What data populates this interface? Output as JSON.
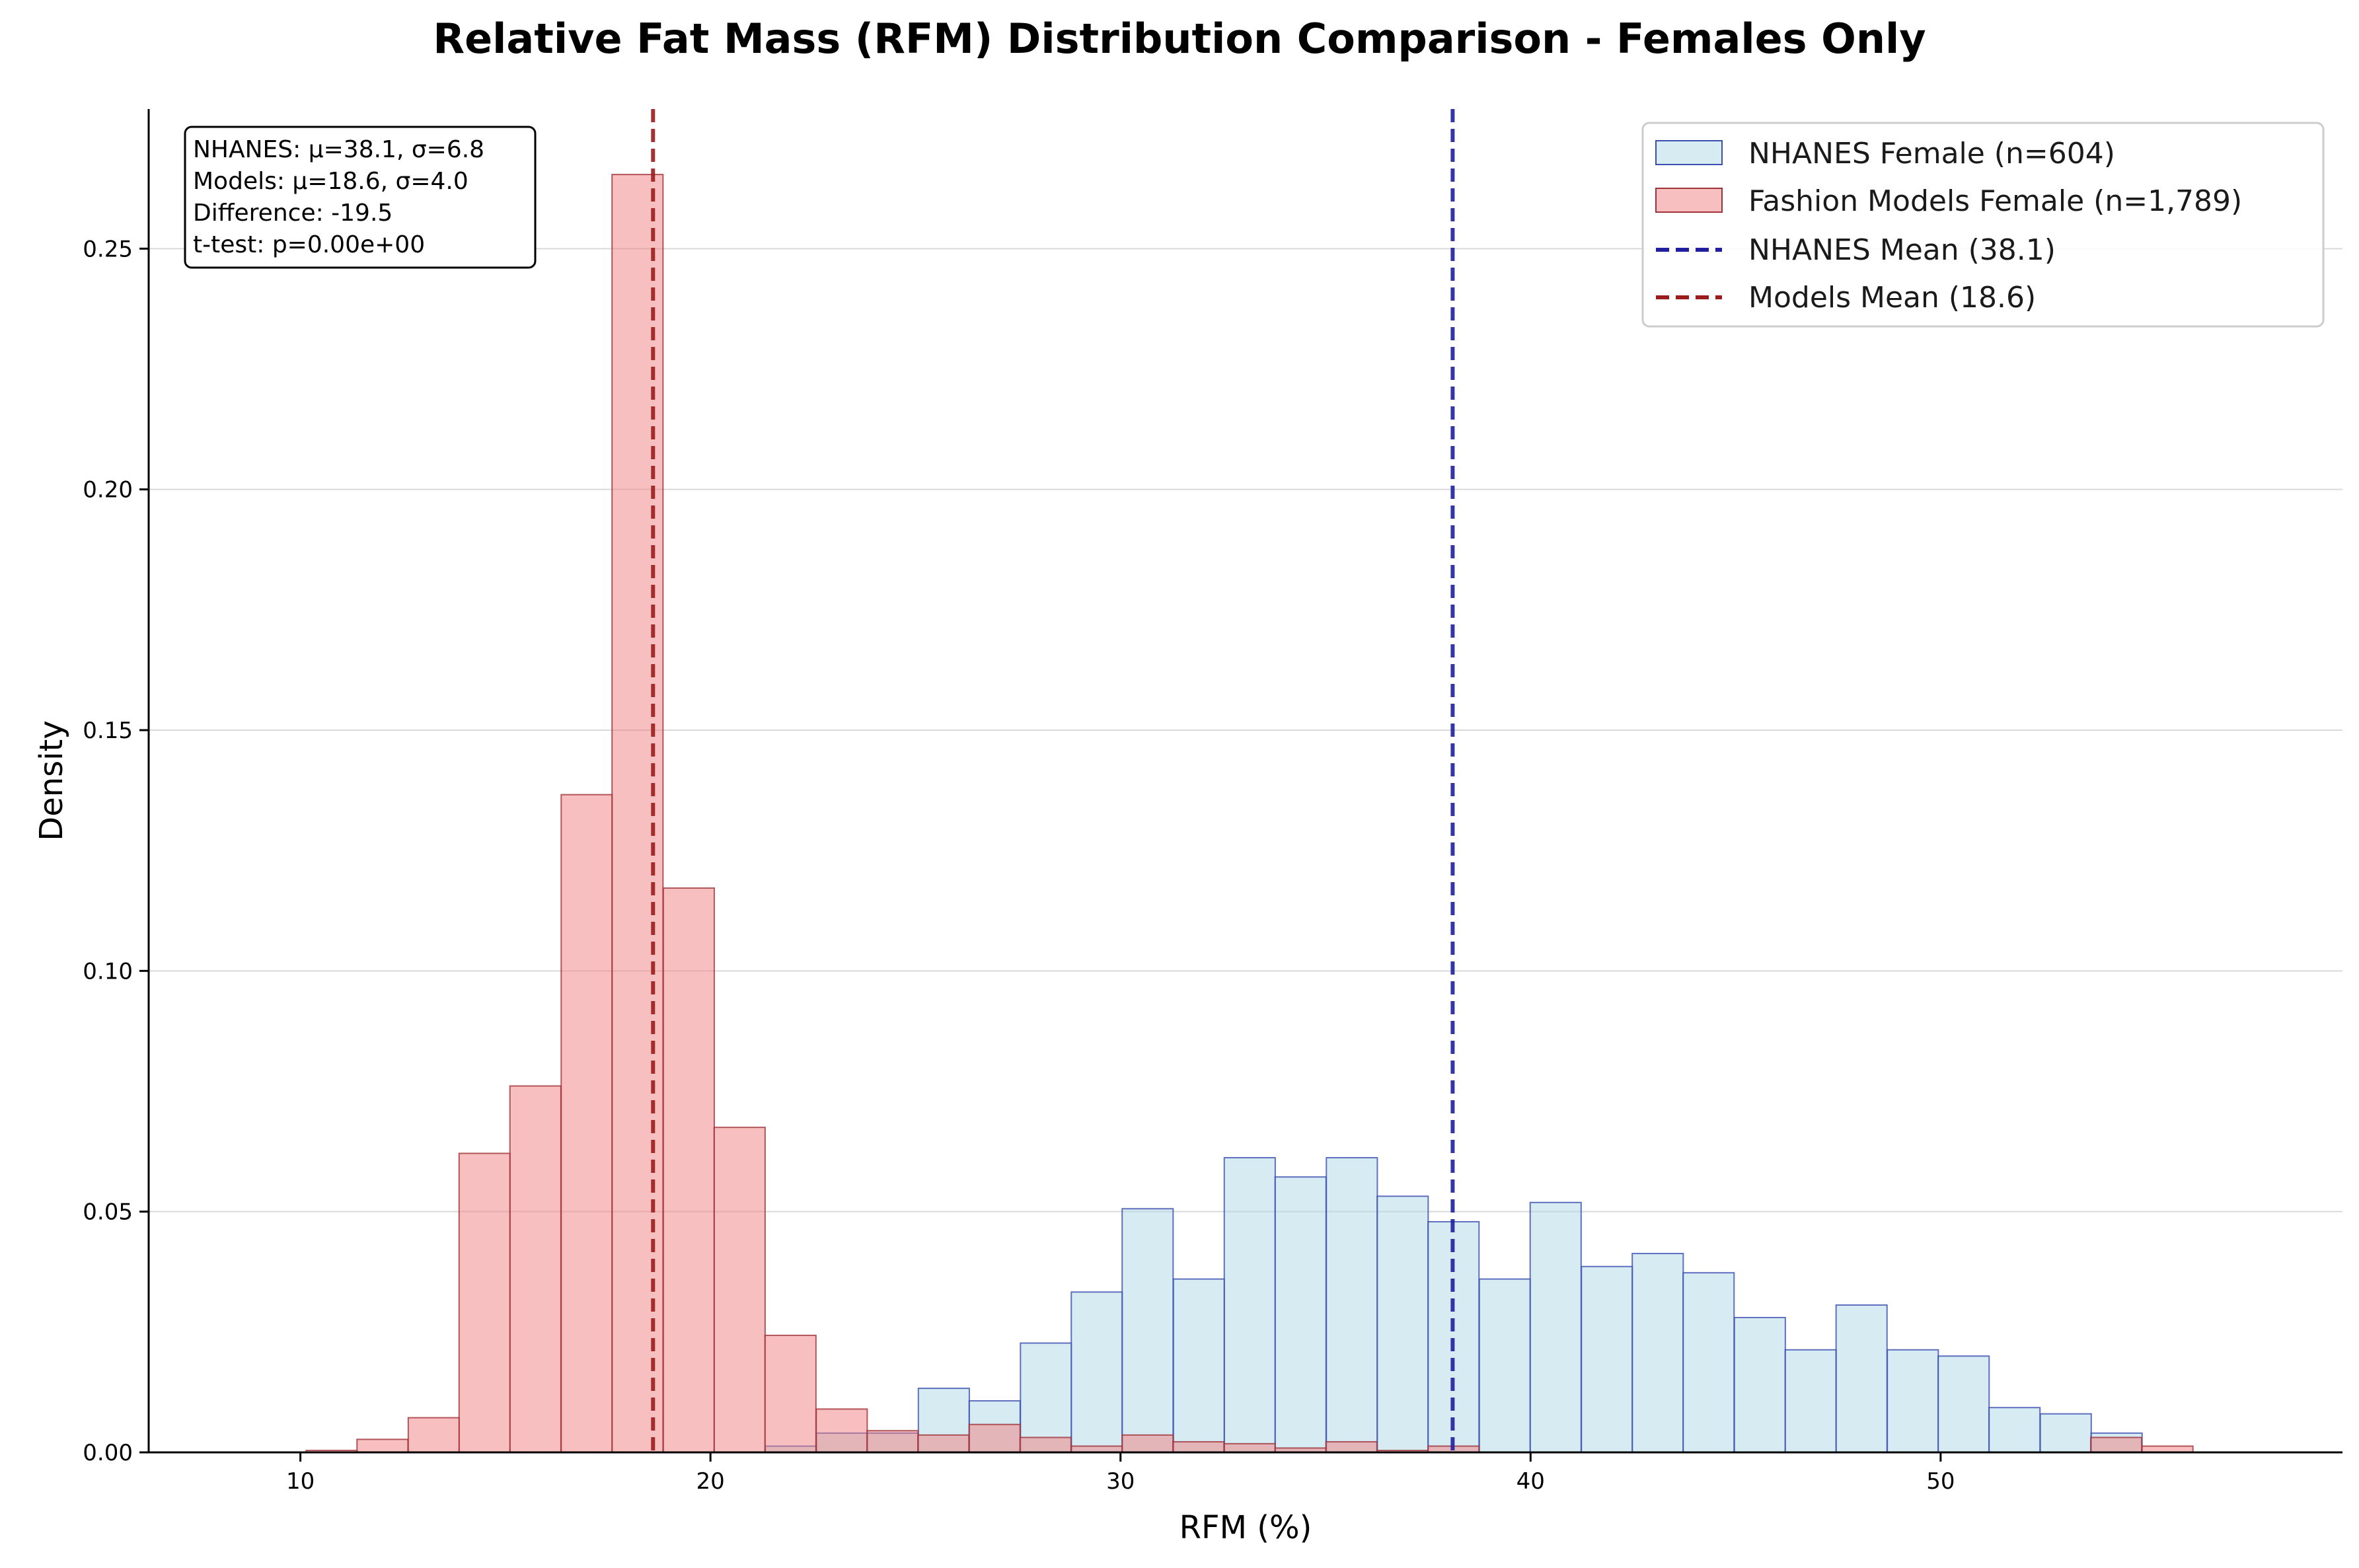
{
  "chart_data": {
    "type": "bar",
    "title": "Relative Fat Mass (RFM) Distribution Comparison - Females Only",
    "xlabel": "RFM (%)",
    "ylabel": "Density",
    "xlim": [
      6.3,
      59.8
    ],
    "ylim": [
      0,
      0.279
    ],
    "xticks": [
      10,
      20,
      30,
      40,
      50
    ],
    "xtick_labels": [
      "10",
      "20",
      "30",
      "40",
      "50"
    ],
    "yticks": [
      0,
      0.05,
      0.1,
      0.15,
      0.2,
      0.25
    ],
    "ytick_labels": [
      "0.00",
      "0.05",
      "0.10",
      "0.15",
      "0.20",
      "0.25"
    ],
    "grid": "horizontal",
    "legend_position": "top-right",
    "series": [
      {
        "name": "NHANES Female (n=604)",
        "kind": "histogram",
        "color": "#add8e6",
        "edge_color": "#3b4fb0",
        "bin_width": 1.243,
        "bins": [
          {
            "x0": 21.34,
            "density": 0.0013
          },
          {
            "x0": 22.58,
            "density": 0.004
          },
          {
            "x0": 23.82,
            "density": 0.004
          },
          {
            "x0": 25.07,
            "density": 0.0133
          },
          {
            "x0": 26.31,
            "density": 0.0107
          },
          {
            "x0": 27.56,
            "density": 0.0227
          },
          {
            "x0": 28.8,
            "density": 0.0333
          },
          {
            "x0": 30.04,
            "density": 0.0506
          },
          {
            "x0": 31.29,
            "density": 0.036
          },
          {
            "x0": 32.53,
            "density": 0.0612
          },
          {
            "x0": 33.77,
            "density": 0.0572
          },
          {
            "x0": 35.02,
            "density": 0.0612
          },
          {
            "x0": 36.26,
            "density": 0.0532
          },
          {
            "x0": 37.5,
            "density": 0.0479
          },
          {
            "x0": 38.75,
            "density": 0.036
          },
          {
            "x0": 39.99,
            "density": 0.0519
          },
          {
            "x0": 41.24,
            "density": 0.0386
          },
          {
            "x0": 42.48,
            "density": 0.0413
          },
          {
            "x0": 43.72,
            "density": 0.0373
          },
          {
            "x0": 44.97,
            "density": 0.028
          },
          {
            "x0": 46.21,
            "density": 0.0213
          },
          {
            "x0": 47.45,
            "density": 0.0306
          },
          {
            "x0": 48.7,
            "density": 0.0213
          },
          {
            "x0": 49.94,
            "density": 0.02
          },
          {
            "x0": 51.18,
            "density": 0.0093
          },
          {
            "x0": 52.43,
            "density": 0.008
          },
          {
            "x0": 53.67,
            "density": 0.004
          }
        ]
      },
      {
        "name": "Fashion Models Female (n=1,789)",
        "kind": "histogram",
        "color": "#f08080",
        "edge_color": "#a0333a",
        "bin_width": 1.243,
        "bins": [
          {
            "x0": 10.14,
            "density": 0.0004
          },
          {
            "x0": 11.38,
            "density": 0.0027
          },
          {
            "x0": 12.63,
            "density": 0.0072
          },
          {
            "x0": 13.87,
            "density": 0.0621
          },
          {
            "x0": 15.11,
            "density": 0.0761
          },
          {
            "x0": 16.36,
            "density": 0.1366
          },
          {
            "x0": 17.6,
            "density": 0.2654
          },
          {
            "x0": 18.85,
            "density": 0.1172
          },
          {
            "x0": 20.09,
            "density": 0.0675
          },
          {
            "x0": 21.33,
            "density": 0.0243
          },
          {
            "x0": 22.58,
            "density": 0.009
          },
          {
            "x0": 23.82,
            "density": 0.0045
          },
          {
            "x0": 25.06,
            "density": 0.0036
          },
          {
            "x0": 26.31,
            "density": 0.0058
          },
          {
            "x0": 27.55,
            "density": 0.0031
          },
          {
            "x0": 28.8,
            "density": 0.0013
          },
          {
            "x0": 30.04,
            "density": 0.0036
          },
          {
            "x0": 31.28,
            "density": 0.0022
          },
          {
            "x0": 32.53,
            "density": 0.0018
          },
          {
            "x0": 33.77,
            "density": 0.0009
          },
          {
            "x0": 35.01,
            "density": 0.0022
          },
          {
            "x0": 36.26,
            "density": 0.0004
          },
          {
            "x0": 37.5,
            "density": 0.0013
          },
          {
            "x0": 53.66,
            "density": 0.0031
          },
          {
            "x0": 54.91,
            "density": 0.0013
          }
        ]
      }
    ],
    "mean_lines": [
      {
        "name": "NHANES Mean (38.1)",
        "x": 38.1,
        "color": "#1f1fa0"
      },
      {
        "name": "Models Mean (18.6)",
        "x": 18.6,
        "color": "#9b1c1c"
      }
    ],
    "stats_box": [
      "NHANES: μ=38.1, σ=6.8",
      "Models: μ=18.6, σ=4.0",
      "Difference: -19.5",
      "t-test: p=0.00e+00"
    ]
  }
}
